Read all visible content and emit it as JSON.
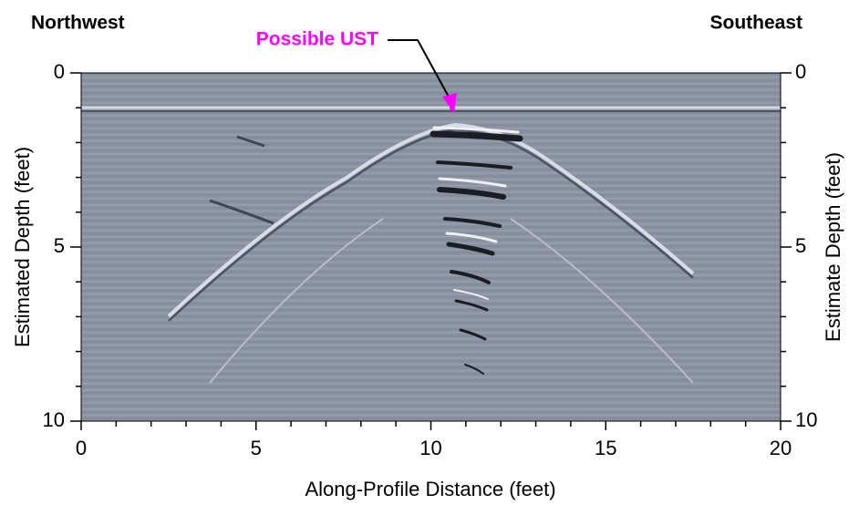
{
  "chart_data": {
    "type": "radargram",
    "title_left": "Northwest",
    "title_right": "Southeast",
    "annotation": "Possible UST",
    "xlabel": "Along-Profile Distance (feet)",
    "ylabel": "Estimated Depth (feet)",
    "y2label": "Estimate Depth (feet)",
    "xlim": [
      0,
      20
    ],
    "xticks": [
      0,
      5,
      10,
      15,
      20
    ],
    "xminorticks": [
      1,
      2,
      3,
      4,
      6,
      7,
      8,
      9,
      11,
      12,
      13,
      14,
      16,
      17,
      18,
      19
    ],
    "ylim": [
      10,
      0
    ],
    "yticks": [
      0,
      5,
      10
    ],
    "yminorticks": [
      1,
      2,
      3,
      4,
      6,
      7,
      8,
      9
    ],
    "y2lim": [
      10,
      0
    ],
    "y2ticks": [
      0,
      5,
      10
    ]
  }
}
